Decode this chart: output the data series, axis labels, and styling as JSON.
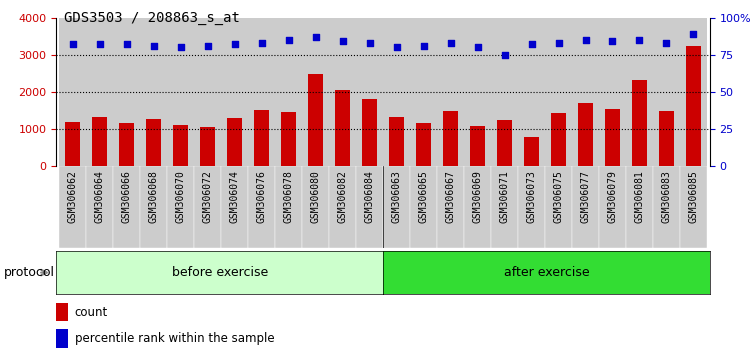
{
  "title": "GDS3503 / 208863_s_at",
  "samples": [
    "GSM306062",
    "GSM306064",
    "GSM306066",
    "GSM306068",
    "GSM306070",
    "GSM306072",
    "GSM306074",
    "GSM306076",
    "GSM306078",
    "GSM306080",
    "GSM306082",
    "GSM306084",
    "GSM306063",
    "GSM306065",
    "GSM306067",
    "GSM306069",
    "GSM306071",
    "GSM306073",
    "GSM306075",
    "GSM306077",
    "GSM306079",
    "GSM306081",
    "GSM306083",
    "GSM306085"
  ],
  "counts": [
    1200,
    1320,
    1160,
    1270,
    1100,
    1060,
    1290,
    1530,
    1450,
    2480,
    2060,
    1800,
    1320,
    1160,
    1480,
    1090,
    1250,
    800,
    1430,
    1700,
    1550,
    2320,
    1490,
    3250
  ],
  "percentile_ranks": [
    82,
    82,
    82,
    81,
    80,
    81,
    82,
    83,
    85,
    87,
    84,
    83,
    80,
    81,
    83,
    80,
    75,
    82,
    83,
    85,
    84,
    85,
    83,
    89
  ],
  "before_count": 12,
  "after_count": 12,
  "before_label": "before exercise",
  "after_label": "after exercise",
  "protocol_label": "protocol",
  "bar_color": "#cc0000",
  "dot_color": "#0000cc",
  "before_bg": "#ccffcc",
  "after_bg": "#33dd33",
  "col_bg_color": "#cccccc",
  "ylim_left": [
    0,
    4000
  ],
  "ylim_right": [
    0,
    100
  ],
  "yticks_left": [
    0,
    1000,
    2000,
    3000,
    4000
  ],
  "yticks_right": [
    0,
    25,
    50,
    75,
    100
  ],
  "legend_count_label": "count",
  "legend_pct_label": "percentile rank within the sample",
  "title_fontsize": 10,
  "tick_fontsize": 7,
  "axis_color_left": "#cc0000",
  "axis_color_right": "#0000cc"
}
